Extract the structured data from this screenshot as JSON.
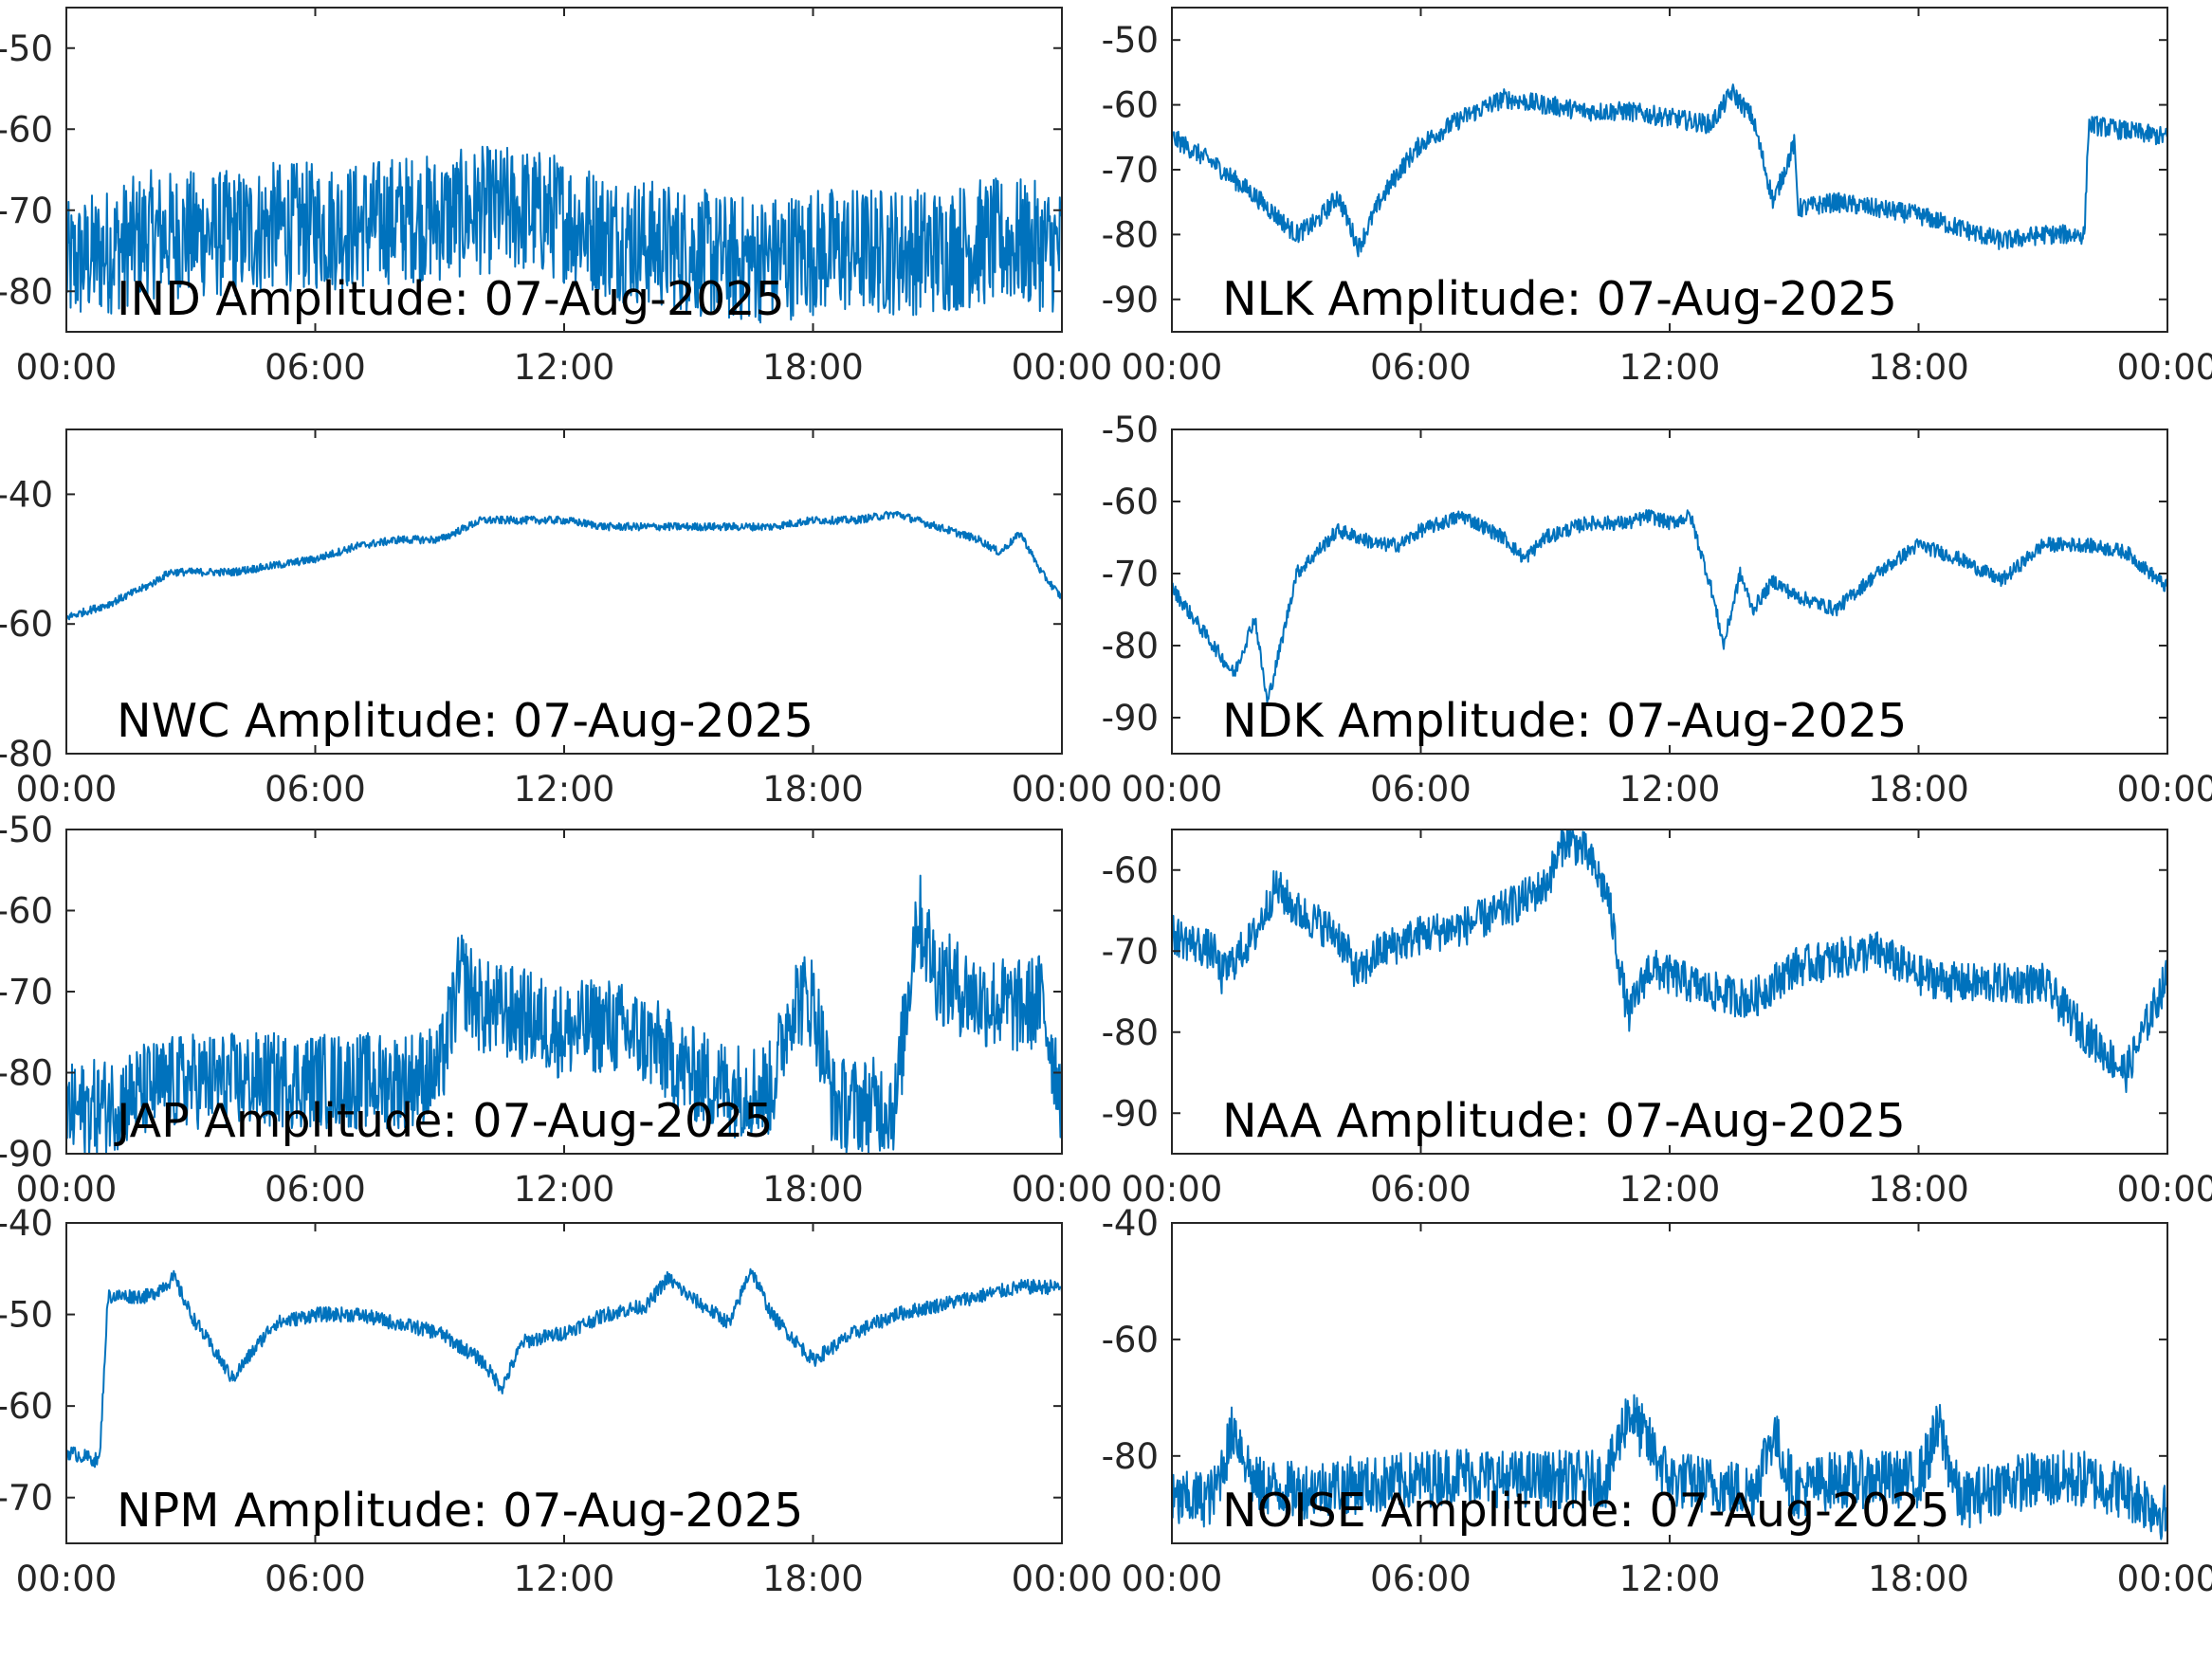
{
  "figure": {
    "line_color": "#0072BD",
    "axes_color": "#262626",
    "background": "#ffffff"
  },
  "chart_data": [
    {
      "type": "line",
      "title": "IND Amplitude: 07-Aug-2025",
      "x_ticks": [
        "00:00",
        "06:00",
        "12:00",
        "18:00",
        "00:00"
      ],
      "y_ticks": [
        "-50",
        "-60",
        "-70",
        "-80"
      ],
      "ylim": [
        -85,
        -45
      ],
      "xlim": [
        0,
        24
      ],
      "grid": false,
      "noise": 8,
      "x": [
        0,
        1,
        2,
        3,
        4,
        5,
        6,
        7,
        8,
        9,
        10,
        11,
        12,
        13,
        14,
        15,
        16,
        17,
        18,
        19,
        20,
        21,
        22,
        23,
        24
      ],
      "y": [
        -77,
        -75,
        -73,
        -73,
        -73,
        -72,
        -72,
        -72,
        -71,
        -71,
        -70,
        -70,
        -71,
        -73,
        -74,
        -75,
        -76,
        -76,
        -75,
        -75,
        -75,
        -75,
        -74,
        -74,
        -75
      ]
    },
    {
      "type": "line",
      "title": "NLK Amplitude: 07-Aug-2025",
      "x_ticks": [
        "00:00",
        "06:00",
        "12:00",
        "18:00",
        "00:00"
      ],
      "y_ticks": [
        "-50",
        "-60",
        "-70",
        "-80",
        "-90"
      ],
      "ylim": [
        -95,
        -45
      ],
      "xlim": [
        0,
        24
      ],
      "grid": false,
      "noise": 1.5,
      "x": [
        0,
        1,
        2,
        3,
        3.5,
        4,
        4.5,
        5,
        5.5,
        6,
        7,
        8,
        9,
        10,
        11,
        12,
        13,
        13.5,
        14,
        14.5,
        15,
        15.1,
        16,
        17,
        18,
        19,
        20,
        21,
        22,
        22.1,
        23,
        24
      ],
      "y": [
        -65,
        -69,
        -74,
        -80,
        -78,
        -74,
        -82,
        -75,
        -70,
        -66,
        -62,
        -59,
        -60,
        -61,
        -61,
        -62,
        -63,
        -58,
        -62,
        -75,
        -66,
        -76,
        -75,
        -76,
        -77,
        -79,
        -81,
        -80,
        -80,
        -63,
        -64,
        -65
      ]
    },
    {
      "type": "line",
      "title": "NWC Amplitude: 07-Aug-2025",
      "x_ticks": [
        "00:00",
        "06:00",
        "12:00",
        "18:00",
        "00:00"
      ],
      "y_ticks": [
        "-40",
        "-60",
        "-80"
      ],
      "ylim": [
        -80,
        -30
      ],
      "xlim": [
        0,
        24
      ],
      "grid": false,
      "noise": 0.6,
      "x": [
        0,
        1,
        2,
        2.5,
        3,
        4,
        5,
        6,
        7,
        8,
        9,
        10,
        11,
        12,
        13,
        14,
        15,
        16,
        17,
        18,
        19,
        20,
        21,
        22,
        22.5,
        23,
        23.5,
        24
      ],
      "y": [
        -59,
        -57,
        -54,
        -52,
        -52,
        -52,
        -51,
        -50,
        -48,
        -47,
        -47,
        -44,
        -44,
        -44,
        -45,
        -45,
        -45,
        -45,
        -45,
        -44,
        -44,
        -43,
        -45,
        -47,
        -49,
        -46,
        -52,
        -56
      ]
    },
    {
      "type": "line",
      "title": "NDK Amplitude: 07-Aug-2025",
      "x_ticks": [
        "00:00",
        "06:00",
        "12:00",
        "18:00",
        "00:00"
      ],
      "y_ticks": [
        "-50",
        "-60",
        "-70",
        "-80",
        "-90"
      ],
      "ylim": [
        -95,
        -50
      ],
      "xlim": [
        0,
        24
      ],
      "grid": false,
      "noise": 1,
      "x": [
        0,
        1,
        1.5,
        2,
        2.3,
        2.7,
        3,
        4,
        5,
        5.5,
        6,
        7,
        8,
        8.5,
        9,
        10,
        11,
        11.5,
        12,
        12.5,
        13,
        13.3,
        13.7,
        14,
        14.5,
        15,
        16,
        17,
        18,
        19,
        20,
        21,
        22,
        23,
        24
      ],
      "y": [
        -72,
        -80,
        -84,
        -76,
        -88,
        -78,
        -70,
        -64,
        -66,
        -66,
        -64,
        -62,
        -65,
        -68,
        -65,
        -63,
        -63,
        -62,
        -63,
        -62,
        -72,
        -80,
        -70,
        -75,
        -71,
        -73,
        -75,
        -70,
        -66,
        -68,
        -71,
        -66,
        -66,
        -67,
        -72
      ]
    },
    {
      "type": "line",
      "title": "JAP Amplitude: 07-Aug-2025",
      "x_ticks": [
        "00:00",
        "06:00",
        "12:00",
        "18:00",
        "00:00"
      ],
      "y_ticks": [
        "-50",
        "-60",
        "-70",
        "-80",
        "-90"
      ],
      "ylim": [
        -90,
        -50
      ],
      "xlim": [
        0,
        24
      ],
      "grid": false,
      "noise": 6,
      "x": [
        0,
        1,
        2,
        3,
        4,
        5,
        6,
        7,
        8,
        9,
        9.5,
        10,
        11,
        12,
        13,
        14,
        15,
        16,
        17,
        17.5,
        18,
        18.5,
        19,
        20,
        20.5,
        21,
        22,
        23,
        23.5,
        24
      ],
      "y": [
        -85,
        -84,
        -82,
        -81,
        -81,
        -81,
        -81,
        -81,
        -81,
        -80,
        -68,
        -72,
        -73,
        -75,
        -74,
        -76,
        -80,
        -82,
        -82,
        -71,
        -71,
        -84,
        -84,
        -84,
        -60,
        -68,
        -71,
        -72,
        -71,
        -83
      ]
    },
    {
      "type": "line",
      "title": "NAA Amplitude: 07-Aug-2025",
      "x_ticks": [
        "00:00",
        "06:00",
        "12:00",
        "18:00",
        "00:00"
      ],
      "y_ticks": [
        "-60",
        "-70",
        "-80",
        "-90"
      ],
      "ylim": [
        -95,
        -55
      ],
      "xlim": [
        0,
        24
      ],
      "grid": false,
      "noise": 2.5,
      "x": [
        0,
        1,
        1.2,
        2,
        2.5,
        3,
        4,
        4.5,
        5,
        6,
        7,
        8,
        9,
        9.5,
        10,
        10.5,
        11,
        11.5,
        12,
        13,
        14,
        15,
        16,
        17,
        18,
        19,
        20,
        21,
        22,
        23,
        24
      ],
      "y": [
        -68,
        -70,
        -73,
        -68,
        -62,
        -65,
        -68,
        -73,
        -70,
        -68,
        -67,
        -65,
        -62,
        -56,
        -58,
        -63,
        -78,
        -72,
        -73,
        -75,
        -76,
        -72,
        -71,
        -70,
        -73,
        -74,
        -74,
        -74,
        -80,
        -85,
        -73
      ]
    },
    {
      "type": "line",
      "title": "NPM Amplitude: 07-Aug-2025",
      "x_ticks": [
        "00:00",
        "06:00",
        "12:00",
        "18:00",
        "00:00"
      ],
      "y_ticks": [
        "-40",
        "-50",
        "-60",
        "-70"
      ],
      "ylim": [
        -75,
        -40
      ],
      "xlim": [
        0,
        24
      ],
      "grid": false,
      "noise": 0.8,
      "x": [
        0,
        0.8,
        1,
        2,
        2.6,
        3,
        4,
        5,
        6,
        7,
        8,
        9,
        10,
        10.5,
        11,
        12,
        13,
        14,
        14.5,
        15,
        16,
        16.5,
        17,
        18,
        19,
        20,
        21,
        22,
        23,
        24
      ],
      "y": [
        -65,
        -66,
        -48,
        -48,
        -46,
        -50,
        -57,
        -51,
        -50,
        -50,
        -51,
        -52,
        -55,
        -58,
        -53,
        -52,
        -50,
        -49,
        -46,
        -48,
        -51,
        -45,
        -50,
        -55,
        -52,
        -50,
        -49,
        -48,
        -47,
        -47
      ]
    },
    {
      "type": "line",
      "title": "NOISE Amplitude: 07-Aug-2025",
      "x_ticks": [
        "00:00",
        "06:00",
        "12:00",
        "18:00",
        "00:00"
      ],
      "y_ticks": [
        "-40",
        "-60",
        "-80"
      ],
      "ylim": [
        -95,
        -40
      ],
      "xlim": [
        0,
        24
      ],
      "grid": false,
      "noise": 5,
      "x": [
        0,
        1,
        1.5,
        2,
        3,
        4,
        5,
        6,
        7,
        8,
        9,
        10,
        10.5,
        11,
        11.5,
        12,
        13,
        14,
        14.5,
        15,
        16,
        17,
        18,
        18.5,
        19,
        20,
        21,
        22,
        23,
        24
      ],
      "y": [
        -88,
        -87,
        -75,
        -85,
        -86,
        -85,
        -85,
        -84,
        -83,
        -84,
        -84,
        -84,
        -84,
        -72,
        -78,
        -84,
        -85,
        -86,
        -76,
        -86,
        -84,
        -84,
        -84,
        -75,
        -88,
        -85,
        -84,
        -84,
        -86,
        -90
      ]
    }
  ]
}
